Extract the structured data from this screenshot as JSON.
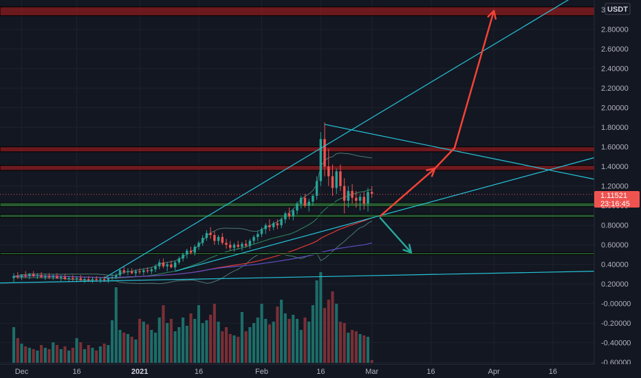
{
  "chart_data": {
    "type": "candlestick",
    "currency": "USDT",
    "last_price": "1.11521",
    "countdown": "23:16:45",
    "y_ticks": [
      "3.00000",
      "2.80000",
      "2.60000",
      "2.40000",
      "2.20000",
      "2.00000",
      "1.80000",
      "1.60000",
      "1.40000",
      "1.20000",
      "1.00000",
      "0.80000",
      "0.60000",
      "0.40000",
      "0.20000",
      "-0.00000",
      "-0.20000",
      "-0.40000",
      "-0.60000"
    ],
    "y_range": [
      -0.62,
      3.1
    ],
    "x_ticks": [
      {
        "label": "Dec",
        "bold": false,
        "day": 2
      },
      {
        "label": "16",
        "bold": false,
        "day": 16
      },
      {
        "label": "2021",
        "bold": true,
        "day": 32
      },
      {
        "label": "16",
        "bold": false,
        "day": 47
      },
      {
        "label": "Feb",
        "bold": false,
        "day": 63
      },
      {
        "label": "16",
        "bold": false,
        "day": 78
      },
      {
        "label": "Mar",
        "bold": false,
        "day": 91
      },
      {
        "label": "16",
        "bold": false,
        "day": 106
      },
      {
        "label": "Apr",
        "bold": false,
        "day": 122
      },
      {
        "label": "16",
        "bold": false,
        "day": 137
      }
    ],
    "x_range": [
      -3.5,
      147.5
    ],
    "resistance_zones": [
      [
        2.94,
        3.03
      ],
      [
        1.55,
        1.6
      ],
      [
        1.36,
        1.41
      ]
    ],
    "support_zones": [
      [
        0.99,
        1.03
      ],
      [
        0.88,
        0.91
      ],
      [
        0.5,
        0.52
      ]
    ],
    "trendlines": [
      {
        "from": [
          23,
          0.26
        ],
        "to": [
          145,
          3.2
        ]
      },
      {
        "from": [
          79,
          1.83
        ],
        "to": [
          147.5,
          1.27
        ]
      },
      {
        "from": [
          41,
          0.33
        ],
        "to": [
          147.5,
          1.49
        ]
      },
      {
        "from": [
          -3.5,
          0.21
        ],
        "to": [
          147.5,
          0.33
        ]
      }
    ],
    "arrows": [
      {
        "color": "#f44336",
        "points": [
          [
            93,
            0.89
          ],
          [
            107,
            1.38
          ],
          [
            112,
            1.59
          ],
          [
            122,
            2.99
          ]
        ]
      },
      {
        "color": "#26a69a",
        "points": [
          [
            93,
            0.88
          ],
          [
            101,
            0.52
          ]
        ]
      }
    ],
    "candles": [
      [
        0.26,
        0.31,
        0.22,
        0.28
      ],
      [
        0.28,
        0.32,
        0.25,
        0.27
      ],
      [
        0.27,
        0.3,
        0.24,
        0.29
      ],
      [
        0.29,
        0.33,
        0.26,
        0.28
      ],
      [
        0.28,
        0.31,
        0.25,
        0.3
      ],
      [
        0.3,
        0.33,
        0.27,
        0.28
      ],
      [
        0.28,
        0.31,
        0.25,
        0.29
      ],
      [
        0.29,
        0.32,
        0.26,
        0.27
      ],
      [
        0.27,
        0.3,
        0.24,
        0.28
      ],
      [
        0.28,
        0.31,
        0.25,
        0.27
      ],
      [
        0.27,
        0.3,
        0.24,
        0.28
      ],
      [
        0.28,
        0.31,
        0.25,
        0.26
      ],
      [
        0.26,
        0.29,
        0.23,
        0.27
      ],
      [
        0.27,
        0.3,
        0.24,
        0.25
      ],
      [
        0.25,
        0.28,
        0.22,
        0.26
      ],
      [
        0.26,
        0.29,
        0.23,
        0.25
      ],
      [
        0.25,
        0.28,
        0.22,
        0.26
      ],
      [
        0.26,
        0.29,
        0.23,
        0.24
      ],
      [
        0.24,
        0.27,
        0.21,
        0.25
      ],
      [
        0.25,
        0.28,
        0.22,
        0.24
      ],
      [
        0.24,
        0.27,
        0.21,
        0.25
      ],
      [
        0.25,
        0.28,
        0.22,
        0.24
      ],
      [
        0.24,
        0.27,
        0.21,
        0.25
      ],
      [
        0.25,
        0.28,
        0.22,
        0.24
      ],
      [
        0.24,
        0.27,
        0.21,
        0.26
      ],
      [
        0.26,
        0.3,
        0.24,
        0.27
      ],
      [
        0.27,
        0.31,
        0.25,
        0.29
      ],
      [
        0.29,
        0.36,
        0.27,
        0.34
      ],
      [
        0.34,
        0.38,
        0.3,
        0.32
      ],
      [
        0.32,
        0.36,
        0.29,
        0.33
      ],
      [
        0.33,
        0.36,
        0.3,
        0.31
      ],
      [
        0.31,
        0.35,
        0.28,
        0.33
      ],
      [
        0.33,
        0.36,
        0.3,
        0.32
      ],
      [
        0.32,
        0.36,
        0.29,
        0.34
      ],
      [
        0.34,
        0.37,
        0.31,
        0.33
      ],
      [
        0.33,
        0.37,
        0.3,
        0.35
      ],
      [
        0.35,
        0.4,
        0.32,
        0.38
      ],
      [
        0.38,
        0.45,
        0.35,
        0.42
      ],
      [
        0.42,
        0.46,
        0.36,
        0.38
      ],
      [
        0.38,
        0.42,
        0.33,
        0.4
      ],
      [
        0.4,
        0.44,
        0.36,
        0.37
      ],
      [
        0.37,
        0.44,
        0.34,
        0.42
      ],
      [
        0.42,
        0.48,
        0.4,
        0.46
      ],
      [
        0.46,
        0.52,
        0.43,
        0.5
      ],
      [
        0.5,
        0.56,
        0.46,
        0.54
      ],
      [
        0.54,
        0.58,
        0.5,
        0.52
      ],
      [
        0.52,
        0.6,
        0.49,
        0.58
      ],
      [
        0.58,
        0.64,
        0.55,
        0.62
      ],
      [
        0.62,
        0.7,
        0.59,
        0.67
      ],
      [
        0.67,
        0.75,
        0.64,
        0.72
      ],
      [
        0.72,
        0.78,
        0.66,
        0.7
      ],
      [
        0.7,
        0.74,
        0.6,
        0.64
      ],
      [
        0.64,
        0.7,
        0.6,
        0.68
      ],
      [
        0.68,
        0.72,
        0.6,
        0.62
      ],
      [
        0.62,
        0.66,
        0.56,
        0.6
      ],
      [
        0.6,
        0.64,
        0.54,
        0.57
      ],
      [
        0.57,
        0.62,
        0.53,
        0.6
      ],
      [
        0.6,
        0.64,
        0.56,
        0.58
      ],
      [
        0.58,
        0.63,
        0.54,
        0.61
      ],
      [
        0.61,
        0.65,
        0.57,
        0.59
      ],
      [
        0.59,
        0.66,
        0.56,
        0.64
      ],
      [
        0.64,
        0.7,
        0.61,
        0.68
      ],
      [
        0.68,
        0.74,
        0.64,
        0.71
      ],
      [
        0.71,
        0.78,
        0.68,
        0.76
      ],
      [
        0.76,
        0.82,
        0.71,
        0.8
      ],
      [
        0.8,
        0.86,
        0.74,
        0.78
      ],
      [
        0.78,
        0.84,
        0.75,
        0.82
      ],
      [
        0.82,
        0.86,
        0.76,
        0.8
      ],
      [
        0.8,
        0.88,
        0.77,
        0.86
      ],
      [
        0.86,
        0.94,
        0.82,
        0.92
      ],
      [
        0.92,
        0.98,
        0.86,
        0.89
      ],
      [
        0.89,
        0.97,
        0.85,
        0.95
      ],
      [
        0.95,
        1.04,
        0.91,
        1.02
      ],
      [
        1.02,
        1.1,
        0.97,
        1.08
      ],
      [
        1.08,
        1.12,
        0.98,
        1.0
      ],
      [
        1.0,
        1.07,
        0.94,
        1.04
      ],
      [
        1.04,
        1.12,
        1.0,
        1.1
      ],
      [
        1.1,
        1.3,
        1.06,
        1.25
      ],
      [
        1.25,
        1.75,
        1.2,
        1.68
      ],
      [
        1.68,
        1.85,
        1.3,
        1.4
      ],
      [
        1.4,
        1.58,
        1.2,
        1.3
      ],
      [
        1.3,
        1.42,
        1.1,
        1.18
      ],
      [
        1.18,
        1.38,
        1.12,
        1.35
      ],
      [
        1.35,
        1.42,
        1.15,
        1.2
      ],
      [
        1.2,
        1.28,
        0.92,
        1.05
      ],
      [
        1.05,
        1.2,
        0.98,
        1.15
      ],
      [
        1.15,
        1.22,
        1.02,
        1.08
      ],
      [
        1.08,
        1.15,
        0.98,
        1.05
      ],
      [
        1.05,
        1.12,
        0.95,
        1.09
      ],
      [
        1.09,
        1.14,
        0.96,
        1.02
      ],
      [
        1.02,
        1.18,
        0.94,
        1.14
      ],
      [
        1.14,
        1.2,
        1.08,
        1.12
      ]
    ],
    "volumes": [
      52,
      36,
      28,
      24,
      22,
      20,
      18,
      26,
      22,
      20,
      30,
      26,
      20,
      24,
      18,
      22,
      36,
      30,
      20,
      26,
      22,
      18,
      24,
      28,
      26,
      62,
      110,
      48,
      44,
      42,
      38,
      34,
      64,
      60,
      56,
      48,
      44,
      66,
      84,
      58,
      64,
      46,
      52,
      66,
      54,
      72,
      64,
      84,
      58,
      62,
      70,
      86,
      60,
      46,
      52,
      42,
      40,
      38,
      74,
      46,
      52,
      58,
      66,
      86,
      64,
      56,
      60,
      82,
      92,
      72,
      64,
      70,
      64,
      48,
      66,
      60,
      84,
      120,
      132,
      80,
      92,
      104,
      86,
      60,
      58,
      44,
      48,
      46,
      42,
      40,
      38,
      4
    ]
  }
}
